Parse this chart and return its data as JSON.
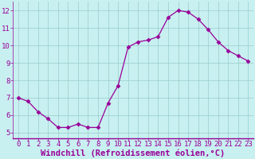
{
  "x": [
    0,
    1,
    2,
    3,
    4,
    5,
    6,
    7,
    8,
    9,
    10,
    11,
    12,
    13,
    14,
    15,
    16,
    17,
    18,
    19,
    20,
    21,
    22,
    23
  ],
  "y": [
    7.0,
    6.8,
    6.2,
    5.8,
    5.3,
    5.3,
    5.5,
    5.3,
    5.3,
    6.7,
    7.7,
    9.9,
    10.2,
    10.3,
    10.5,
    11.6,
    12.0,
    11.9,
    11.5,
    10.9,
    10.2,
    9.7,
    9.4,
    9.1
  ],
  "line_color": "#990099",
  "marker": "D",
  "marker_size": 2.5,
  "bg_color": "#c8f0f0",
  "grid_color": "#99cccc",
  "xlabel": "Windchill (Refroidissement éolien,°C)",
  "xlabel_color": "#990099",
  "tick_color": "#990099",
  "ylim": [
    4.7,
    12.5
  ],
  "yticks": [
    5,
    6,
    7,
    8,
    9,
    10,
    11,
    12
  ],
  "xlim": [
    -0.5,
    23.5
  ],
  "xticks": [
    0,
    1,
    2,
    3,
    4,
    5,
    6,
    7,
    8,
    9,
    10,
    11,
    12,
    13,
    14,
    15,
    16,
    17,
    18,
    19,
    20,
    21,
    22,
    23
  ],
  "tick_fontsize": 6.5,
  "label_fontsize": 7.5
}
